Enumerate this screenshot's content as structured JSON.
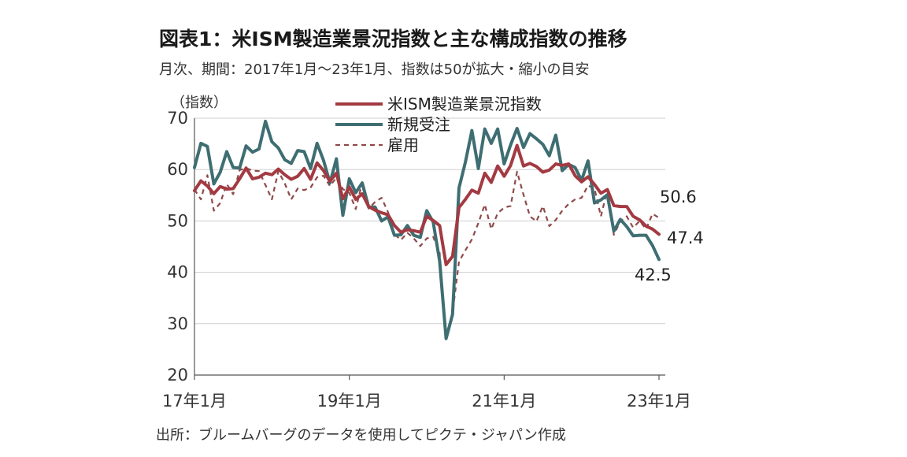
{
  "header": {
    "title": "図表1：米ISM製造業景況指数と主な構成指数の推移",
    "subtitle": "月次、期間：2017年1月～23年1月、指数は50が拡大・縮小の目安"
  },
  "footer": {
    "source": "出所：ブルームバーグのデータを使用してピクテ・ジャパン作成"
  },
  "chart_data": {
    "type": "line",
    "y_unit_label": "（指数）",
    "ylim": [
      20,
      70
    ],
    "y_ticks": [
      "70",
      "60",
      "50",
      "40",
      "30",
      "20"
    ],
    "y_tick_values": [
      70,
      60,
      50,
      40,
      30,
      20
    ],
    "x_ticks": [
      "17年1月",
      "19年1月",
      "21年1月",
      "23年1月"
    ],
    "x_tick_index": [
      0,
      24,
      48,
      72
    ],
    "x_start": "2017-01",
    "x_end": "2023-01",
    "grid": true,
    "legend_position": "top-center",
    "series": [
      {
        "name": "米ISM製造業景況指数",
        "color": "#a33a42",
        "style": "solid",
        "values": [
          55.9,
          57.8,
          56.8,
          55.3,
          56.7,
          56.2,
          56.3,
          58.2,
          60.3,
          58.2,
          58.5,
          59.3,
          59.0,
          60.1,
          59.0,
          58.1,
          58.7,
          60.2,
          58.1,
          61.3,
          59.8,
          57.7,
          59.3,
          54.3,
          56.6,
          54.2,
          55.3,
          52.8,
          52.1,
          51.6,
          51.2,
          49.1,
          47.8,
          48.3,
          48.1,
          47.8,
          50.9,
          50.1,
          49.1,
          41.5,
          43.1,
          52.6,
          54.2,
          56.0,
          55.4,
          59.3,
          57.5,
          60.7,
          58.7,
          60.8,
          64.7,
          60.7,
          61.2,
          60.6,
          59.5,
          59.9,
          61.1,
          60.8,
          61.1,
          58.8,
          57.6,
          58.6,
          57.1,
          55.4,
          56.1,
          53.0,
          52.8,
          52.8,
          50.9,
          50.2,
          49.0,
          48.4,
          47.4
        ]
      },
      {
        "name": "新規受注",
        "color": "#3e6e72",
        "style": "solid",
        "values": [
          60.4,
          65.1,
          64.5,
          57.2,
          59.5,
          63.5,
          60.4,
          60.3,
          64.6,
          63.4,
          64.0,
          69.4,
          65.4,
          64.2,
          61.9,
          61.2,
          63.7,
          63.5,
          60.2,
          65.1,
          61.8,
          57.4,
          62.1,
          51.1,
          58.2,
          55.5,
          57.4,
          52.7,
          52.7,
          50.0,
          50.8,
          47.2,
          47.3,
          49.1,
          47.2,
          46.8,
          52.0,
          49.8,
          42.2,
          27.1,
          31.8,
          56.4,
          61.5,
          67.6,
          60.2,
          67.9,
          65.1,
          67.9,
          61.1,
          64.8,
          68.0,
          64.3,
          67.0,
          66.0,
          64.9,
          62.7,
          66.7,
          59.8,
          61.0,
          60.4,
          57.9,
          61.7,
          53.5,
          54.1,
          55.1,
          48.0,
          50.3,
          48.9,
          47.1,
          47.2,
          47.2,
          45.2,
          42.5
        ]
      },
      {
        "name": "雇用",
        "color": "#8f4a4a",
        "style": "dashed",
        "values": [
          56.1,
          54.2,
          58.9,
          52.0,
          53.5,
          57.2,
          55.2,
          59.9,
          60.3,
          59.8,
          59.7,
          57.0,
          54.2,
          59.7,
          57.3,
          54.2,
          56.3,
          56.0,
          56.5,
          58.5,
          58.8,
          56.8,
          58.4,
          56.2,
          55.5,
          52.3,
          57.5,
          52.4,
          53.7,
          54.5,
          51.7,
          47.4,
          46.3,
          47.7,
          46.6,
          45.1,
          46.6,
          46.9,
          43.8,
          27.5,
          32.1,
          42.1,
          44.3,
          46.4,
          49.6,
          53.2,
          48.4,
          51.5,
          52.6,
          52.9,
          59.6,
          55.1,
          50.9,
          49.9,
          52.9,
          49.0,
          50.2,
          52.0,
          53.3,
          54.2,
          54.5,
          56.9,
          56.3,
          50.9,
          56.1,
          47.3,
          49.9,
          50.9,
          48.7,
          50.0,
          48.4,
          51.4,
          50.6
        ]
      }
    ],
    "annotations": [
      {
        "text": "50.6",
        "series": "雇用"
      },
      {
        "text": "47.4",
        "series": "米ISM製造業景況指数"
      },
      {
        "text": "42.5",
        "series": "新規受注"
      }
    ]
  }
}
